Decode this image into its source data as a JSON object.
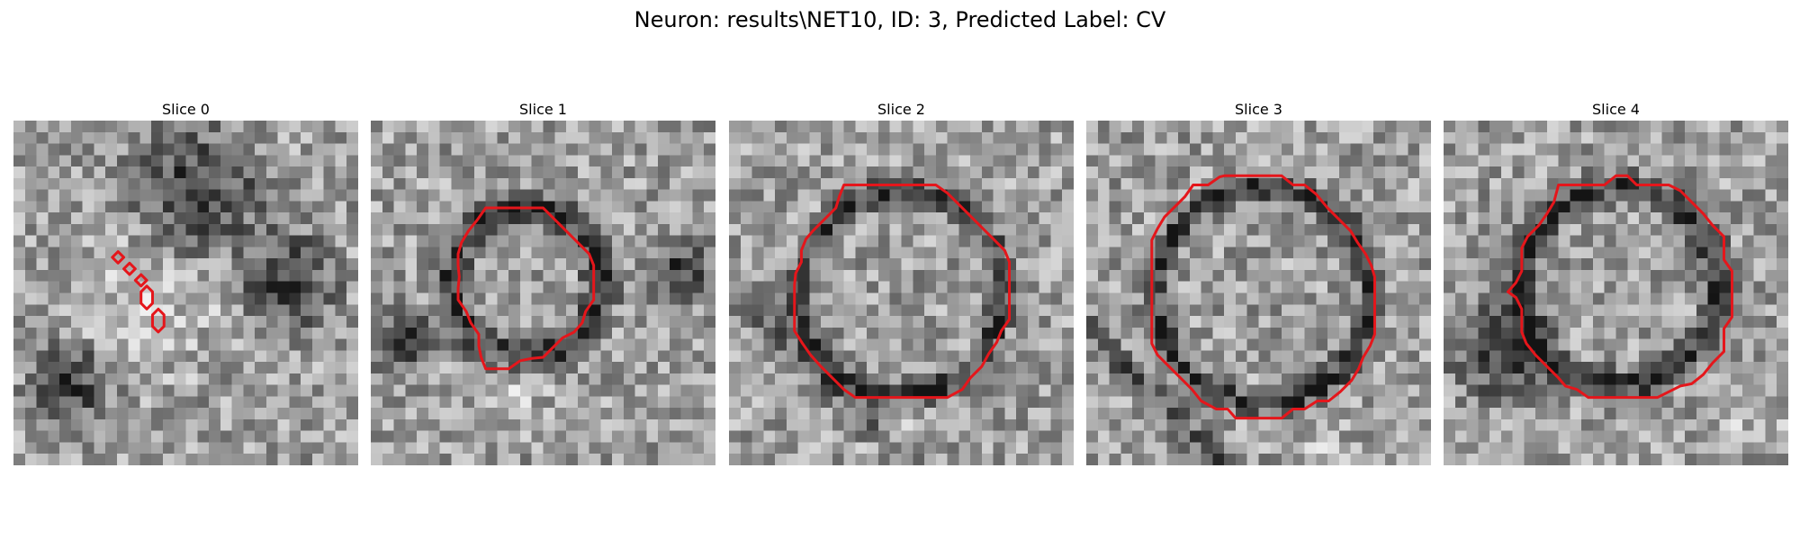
{
  "figure": {
    "suptitle": "Neuron: results\\NET10, ID: 3, Predicted Label: CV",
    "contour_color": "#e5161b",
    "colormap": "grayscale",
    "slices": [
      {
        "title": "Slice 0"
      },
      {
        "title": "Slice 1"
      },
      {
        "title": "Slice 2"
      },
      {
        "title": "Slice 3"
      },
      {
        "title": "Slice 4"
      }
    ]
  }
}
